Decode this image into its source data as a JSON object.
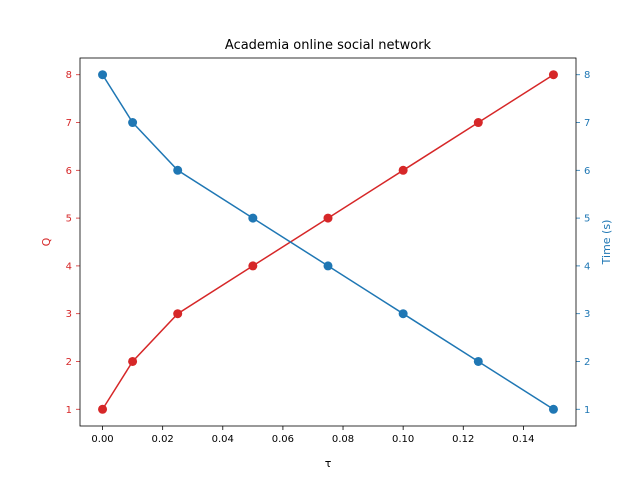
{
  "chart_data": {
    "type": "line",
    "title": "Academia online social network",
    "xlabel": "τ",
    "ylabel_left": "Q",
    "ylabel_right": "Time (s)",
    "x": [
      0.0,
      0.01,
      0.025,
      0.05,
      0.075,
      0.1,
      0.125,
      0.15
    ],
    "xlim": [
      -0.0075,
      0.1575
    ],
    "ylim_left": [
      0.65,
      8.35
    ],
    "ylim_right": [
      0.65,
      8.35
    ],
    "x_ticks": [
      0.0,
      0.02,
      0.04,
      0.06,
      0.08,
      0.1,
      0.12,
      0.14
    ],
    "x_tick_labels": [
      "0.00",
      "0.02",
      "0.04",
      "0.06",
      "0.08",
      "0.10",
      "0.12",
      "0.14"
    ],
    "y_ticks": [
      1,
      2,
      3,
      4,
      5,
      6,
      7,
      8
    ],
    "y_tick_labels": [
      "1",
      "2",
      "3",
      "4",
      "5",
      "6",
      "7",
      "8"
    ],
    "grid": false,
    "series": [
      {
        "axis": "left",
        "color": "#d62728",
        "values": [
          1,
          2,
          3,
          4,
          5,
          6,
          7,
          8
        ]
      },
      {
        "axis": "right",
        "color": "#1f77b4",
        "values": [
          8,
          7,
          6,
          5,
          4,
          3,
          2,
          1
        ]
      }
    ]
  }
}
